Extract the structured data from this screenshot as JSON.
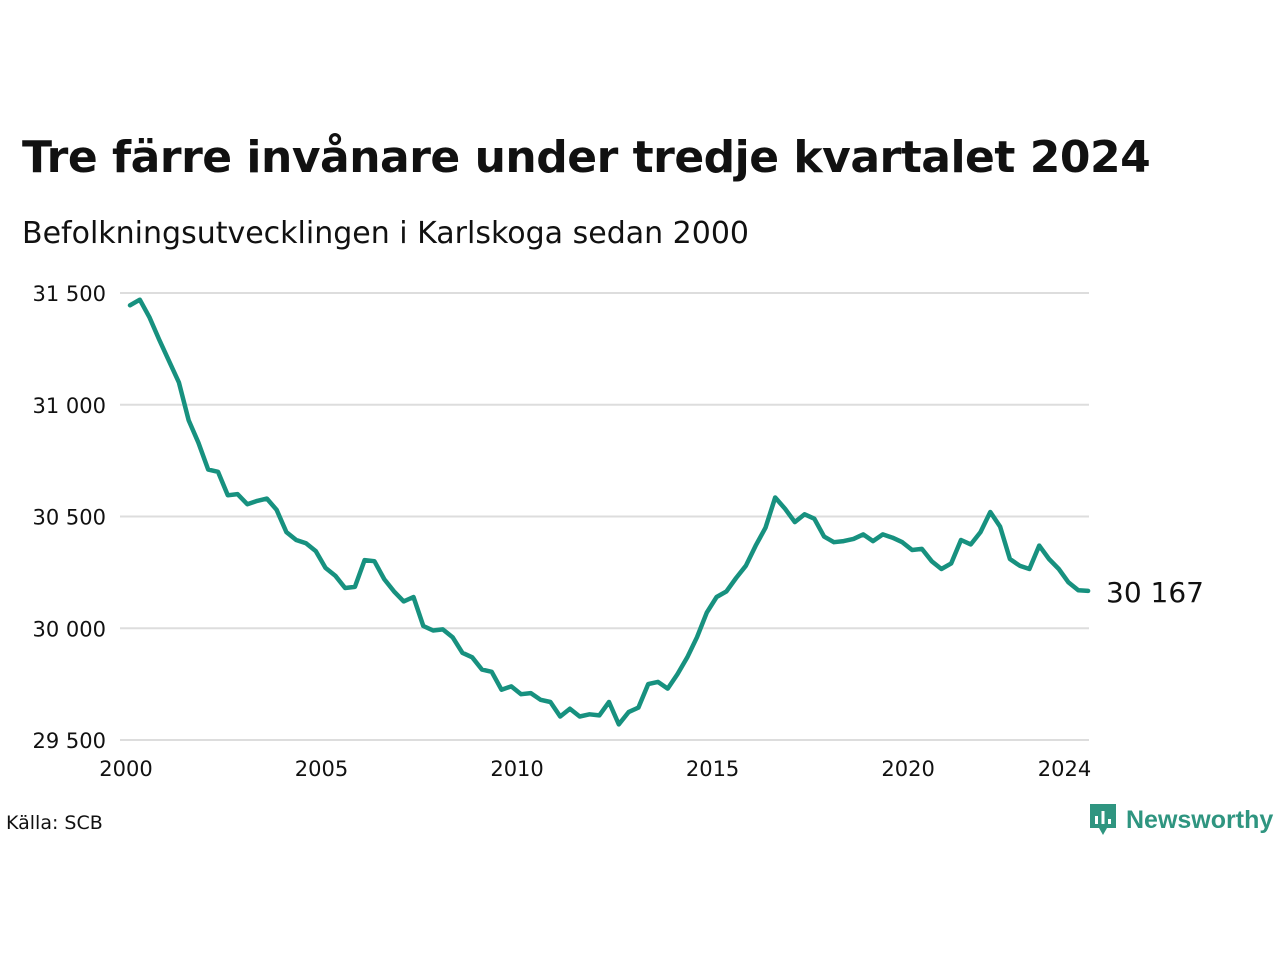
{
  "title": "Tre färre invånare under tredje kvartalet 2024",
  "subtitle": "Befolkningsutvecklingen i Karlskoga sedan 2000",
  "source": "Källa: SCB",
  "brand": {
    "name": "Newsworthy",
    "icon": "newsworthy-logo-icon",
    "color": "#2f9580"
  },
  "chart_data": {
    "type": "line",
    "title": "Tre färre invånare under tredje kvartalet 2024",
    "subtitle": "Befolkningsutvecklingen i Karlskoga sedan 2000",
    "xlabel": "",
    "ylabel": "",
    "xlim": [
      2000,
      2024.6
    ],
    "ylim": [
      29500,
      31500
    ],
    "x_ticks": [
      "2000",
      "2005",
      "2010",
      "2015",
      "2020",
      "2024"
    ],
    "y_ticks": [
      "31 500",
      "31 000",
      "30 500",
      "30 000",
      "29 500"
    ],
    "grid": true,
    "legend": "none",
    "line_color": "#17917f",
    "end_label": "30 167",
    "series": [
      {
        "x": [
          2000.0,
          2000.25,
          2000.5,
          2000.75,
          2001.0,
          2001.25,
          2001.5,
          2001.75,
          2002.0,
          2002.25,
          2002.5,
          2002.75,
          2003.0,
          2003.25,
          2003.5,
          2003.75,
          2004.0,
          2004.25,
          2004.5,
          2004.75,
          2005.0,
          2005.25,
          2005.5,
          2005.75,
          2006.0,
          2006.25,
          2006.5,
          2006.75,
          2007.0,
          2007.25,
          2007.5,
          2007.75,
          2008.0,
          2008.25,
          2008.5,
          2008.75,
          2009.0,
          2009.25,
          2009.5,
          2009.75,
          2010.0,
          2010.25,
          2010.5,
          2010.75,
          2011.0,
          2011.25,
          2011.5,
          2011.75,
          2012.0,
          2012.25,
          2012.5,
          2012.75,
          2013.0,
          2013.25,
          2013.5,
          2013.75,
          2014.0,
          2014.25,
          2014.5,
          2014.75,
          2015.0,
          2015.25,
          2015.5,
          2015.75,
          2016.0,
          2016.25,
          2016.5,
          2016.75,
          2017.0,
          2017.25,
          2017.5,
          2017.75,
          2018.0,
          2018.25,
          2018.5,
          2018.75,
          2019.0,
          2019.25,
          2019.5,
          2019.75,
          2020.0,
          2020.25,
          2020.5,
          2020.75,
          2021.0,
          2021.25,
          2021.5,
          2021.75,
          2022.0,
          2022.25,
          2022.5,
          2022.75,
          2023.0,
          2023.25,
          2023.5,
          2023.75,
          2024.0,
          2024.25,
          2024.5
        ],
        "y": [
          31445,
          31470,
          31390,
          31290,
          31195,
          31100,
          30930,
          30830,
          30710,
          30700,
          30595,
          30600,
          30555,
          30570,
          30580,
          30530,
          30430,
          30395,
          30380,
          30345,
          30270,
          30235,
          30180,
          30185,
          30305,
          30300,
          30220,
          30165,
          30120,
          30140,
          30010,
          29990,
          29995,
          29960,
          29890,
          29870,
          29815,
          29805,
          29725,
          29740,
          29705,
          29710,
          29680,
          29670,
          29605,
          29640,
          29605,
          29615,
          29610,
          29670,
          29570,
          29625,
          29645,
          29750,
          29760,
          29730,
          29795,
          29870,
          29960,
          30070,
          30140,
          30165,
          30225,
          30280,
          30370,
          30450,
          30585,
          30535,
          30475,
          30510,
          30490,
          30410,
          30385,
          30390,
          30400,
          30420,
          30390,
          30420,
          30405,
          30385,
          30350,
          30355,
          30300,
          30265,
          30290,
          30395,
          30375,
          30430,
          30520,
          30455,
          30310,
          30280,
          30265,
          30370,
          30310,
          30265,
          30205,
          30170,
          30167
        ]
      }
    ]
  }
}
